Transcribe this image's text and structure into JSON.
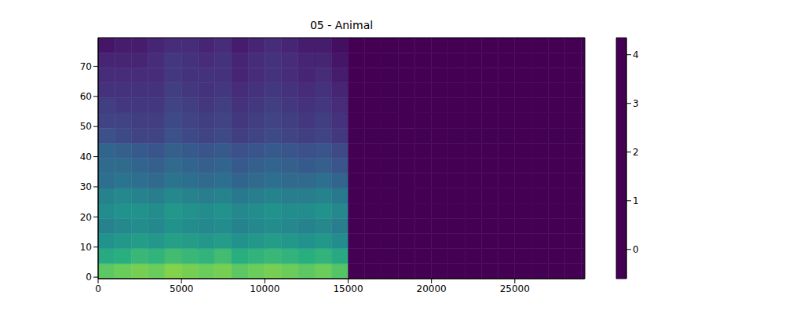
{
  "chart_data": {
    "type": "heatmap",
    "title": "05 - Animal",
    "x_bins": [
      0,
      1000,
      2000,
      3000,
      4000,
      5000,
      6000,
      7000,
      8000,
      9000,
      10000,
      11000,
      12000,
      13000,
      14000,
      15000,
      16000,
      17000,
      18000,
      19000,
      20000,
      21000,
      22000,
      23000,
      24000,
      25000,
      26000,
      27000,
      28000,
      29000,
      29200
    ],
    "y_bins": [
      -0.5,
      4.5,
      9.5,
      14.5,
      19.5,
      24.5,
      29.5,
      34.5,
      39.5,
      44.5,
      49.5,
      54.5,
      59.5,
      64.5,
      69.5,
      74.5,
      79.5
    ],
    "cells": [
      [
        3.1,
        3.2,
        3.3,
        3.2,
        3.4,
        3.3,
        3.2,
        3.3,
        3.1,
        3.2,
        3.3,
        3.2,
        3.1,
        3.2,
        3.0,
        -0.6,
        -0.6,
        -0.6,
        -0.6,
        -0.6,
        -0.6,
        -0.6,
        -0.6,
        -0.6,
        -0.6,
        -0.6,
        -0.6,
        -0.6,
        -0.6,
        -0.6
      ],
      [
        2.4,
        2.5,
        2.7,
        2.6,
        2.8,
        2.7,
        2.6,
        2.8,
        2.5,
        2.6,
        2.7,
        2.6,
        2.5,
        2.6,
        2.4,
        -0.6,
        -0.6,
        -0.6,
        -0.6,
        -0.6,
        -0.6,
        -0.6,
        -0.6,
        -0.6,
        -0.6,
        -0.6,
        -0.6,
        -0.6,
        -0.6,
        -0.6
      ],
      [
        1.9,
        2.0,
        2.1,
        2.0,
        2.2,
        2.1,
        2.0,
        2.1,
        1.9,
        2.0,
        2.1,
        2.0,
        1.9,
        2.0,
        1.8,
        -0.6,
        -0.6,
        -0.6,
        -0.6,
        -0.6,
        -0.6,
        -0.6,
        -0.6,
        -0.6,
        -0.6,
        -0.6,
        -0.6,
        -0.6,
        -0.6,
        -0.6
      ],
      [
        1.6,
        1.7,
        1.8,
        1.7,
        1.9,
        1.8,
        1.7,
        1.8,
        1.6,
        1.7,
        1.8,
        1.7,
        1.6,
        1.7,
        1.5,
        -0.6,
        -0.6,
        -0.6,
        -0.6,
        -0.6,
        -0.6,
        -0.6,
        -0.6,
        -0.6,
        -0.6,
        -0.6,
        -0.6,
        -0.6,
        -0.6,
        -0.6
      ],
      [
        1.8,
        1.9,
        1.9,
        1.8,
        2.0,
        1.9,
        1.8,
        1.9,
        1.7,
        1.8,
        1.9,
        1.8,
        1.8,
        1.9,
        1.7,
        -0.6,
        -0.6,
        -0.6,
        -0.6,
        -0.6,
        -0.6,
        -0.6,
        -0.6,
        -0.6,
        -0.6,
        -0.6,
        -0.6,
        -0.6,
        -0.6,
        -0.6
      ],
      [
        1.6,
        1.7,
        1.6,
        1.5,
        1.7,
        1.6,
        1.5,
        1.6,
        1.4,
        1.5,
        1.6,
        1.5,
        1.5,
        1.6,
        1.4,
        -0.6,
        -0.6,
        -0.6,
        -0.6,
        -0.6,
        -0.6,
        -0.6,
        -0.6,
        -0.6,
        -0.6,
        -0.6,
        -0.6,
        -0.6,
        -0.6,
        -0.6
      ],
      [
        1.2,
        1.3,
        1.2,
        1.1,
        1.3,
        1.2,
        1.1,
        1.2,
        1.0,
        1.1,
        1.2,
        1.1,
        1.1,
        1.2,
        1.0,
        -0.6,
        -0.6,
        -0.6,
        -0.6,
        -0.6,
        -0.6,
        -0.6,
        -0.6,
        -0.6,
        -0.6,
        -0.6,
        -0.6,
        -0.6,
        -0.6,
        -0.6
      ],
      [
        1.1,
        1.1,
        1.0,
        0.9,
        1.1,
        1.0,
        0.9,
        1.0,
        0.8,
        0.9,
        1.0,
        0.9,
        0.8,
        0.9,
        0.7,
        -0.6,
        -0.6,
        -0.6,
        -0.6,
        -0.6,
        -0.6,
        -0.6,
        -0.6,
        -0.6,
        -0.6,
        -0.6,
        -0.6,
        -0.6,
        -0.6,
        -0.6
      ],
      [
        1.0,
        0.9,
        0.8,
        0.7,
        0.9,
        0.8,
        0.7,
        0.8,
        0.6,
        0.7,
        0.8,
        0.7,
        0.6,
        0.7,
        0.5,
        -0.6,
        -0.6,
        -0.6,
        -0.6,
        -0.6,
        -0.6,
        -0.6,
        -0.6,
        -0.6,
        -0.6,
        -0.6,
        -0.6,
        -0.6,
        -0.6,
        -0.6
      ],
      [
        0.6,
        0.5,
        0.4,
        0.4,
        0.6,
        0.5,
        0.4,
        0.5,
        0.3,
        0.4,
        0.5,
        0.4,
        0.3,
        0.4,
        0.2,
        -0.6,
        -0.6,
        -0.6,
        -0.6,
        -0.6,
        -0.6,
        -0.6,
        -0.6,
        -0.6,
        -0.6,
        -0.6,
        -0.6,
        -0.6,
        -0.6,
        -0.6
      ],
      [
        0.4,
        0.4,
        0.3,
        0.3,
        0.5,
        0.4,
        0.3,
        0.4,
        0.2,
        0.3,
        0.4,
        0.3,
        0.2,
        0.3,
        0.1,
        -0.6,
        -0.6,
        -0.6,
        -0.6,
        -0.6,
        -0.6,
        -0.6,
        -0.6,
        -0.6,
        -0.6,
        -0.6,
        -0.6,
        -0.6,
        -0.6,
        -0.6
      ],
      [
        0.3,
        0.2,
        0.2,
        0.2,
        0.4,
        0.3,
        0.2,
        0.3,
        0.1,
        0.2,
        0.3,
        0.2,
        0.1,
        0.2,
        0.0,
        -0.6,
        -0.6,
        -0.6,
        -0.6,
        -0.6,
        -0.6,
        -0.6,
        -0.6,
        -0.6,
        -0.6,
        -0.6,
        -0.6,
        -0.6,
        -0.6,
        -0.6
      ],
      [
        0.1,
        0.1,
        0.1,
        0.1,
        0.3,
        0.2,
        0.1,
        0.2,
        0.0,
        0.1,
        0.2,
        0.1,
        0.0,
        0.1,
        -0.1,
        -0.6,
        -0.6,
        -0.6,
        -0.6,
        -0.6,
        -0.6,
        -0.6,
        -0.6,
        -0.6,
        -0.6,
        -0.6,
        -0.6,
        -0.6,
        -0.6,
        -0.6
      ],
      [
        0.0,
        0.0,
        0.0,
        0.0,
        0.2,
        0.1,
        0.1,
        0.1,
        -0.1,
        0.0,
        0.1,
        0.0,
        -0.1,
        0.0,
        -0.2,
        -0.6,
        -0.6,
        -0.6,
        -0.6,
        -0.6,
        -0.6,
        -0.6,
        -0.6,
        -0.6,
        -0.6,
        -0.6,
        -0.6,
        -0.6,
        -0.6,
        -0.6
      ],
      [
        -0.1,
        -0.1,
        -0.1,
        0.0,
        0.2,
        0.1,
        0.0,
        0.1,
        -0.1,
        0.0,
        0.1,
        0.0,
        -0.1,
        -0.1,
        -0.3,
        -0.6,
        -0.6,
        -0.6,
        -0.6,
        -0.6,
        -0.6,
        -0.6,
        -0.6,
        -0.6,
        -0.6,
        -0.6,
        -0.6,
        -0.6,
        -0.6,
        -0.6
      ],
      [
        -0.3,
        -0.2,
        -0.2,
        -0.1,
        0.0,
        0.0,
        -0.1,
        0.0,
        -0.2,
        -0.1,
        0.0,
        -0.1,
        -0.2,
        -0.2,
        -0.4,
        -0.6,
        -0.6,
        -0.6,
        -0.6,
        -0.6,
        -0.6,
        -0.6,
        -0.6,
        -0.6,
        -0.6,
        -0.6,
        -0.6,
        -0.6,
        -0.6,
        -0.6
      ]
    ],
    "xlim": [
      0,
      29200
    ],
    "ylim": [
      -0.5,
      79.5
    ],
    "xticks": [
      0,
      5000,
      10000,
      15000,
      20000,
      25000
    ],
    "yticks": [
      0,
      10,
      20,
      30,
      40,
      50,
      60,
      70
    ],
    "colorbar": {
      "range": [
        -0.6,
        4.35
      ],
      "ticks": [
        0,
        1,
        2,
        3,
        4
      ]
    }
  }
}
